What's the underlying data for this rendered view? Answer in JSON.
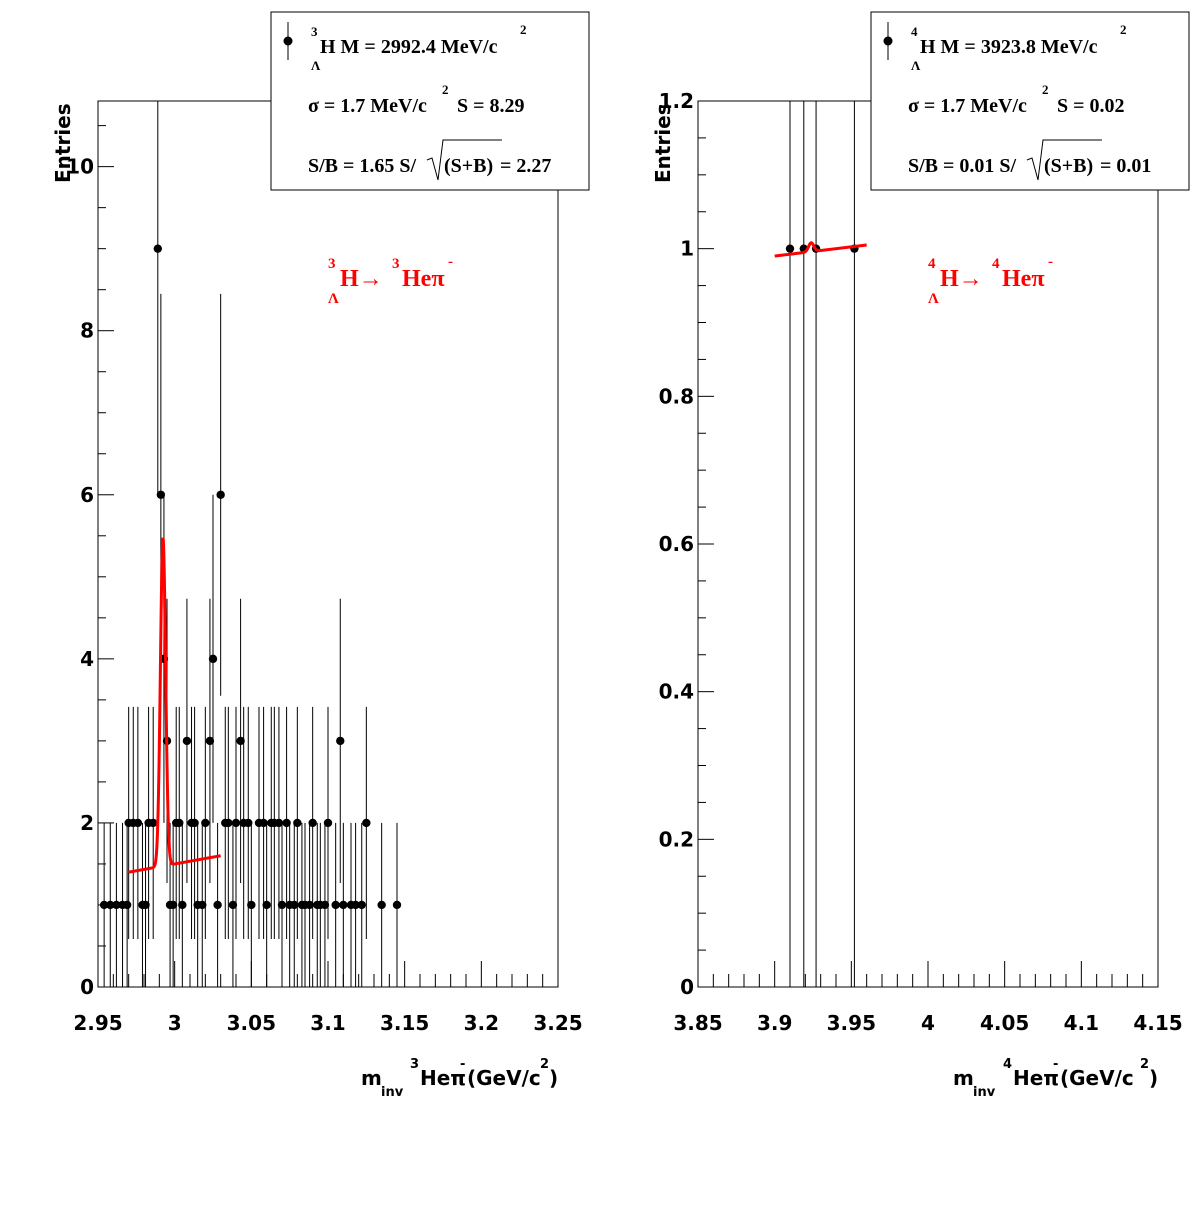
{
  "colors": {
    "data": "#000000",
    "fit": "#ff0000",
    "background": "#ffffff"
  },
  "chart_data": [
    {
      "type": "scatter",
      "ylabel": "Entries",
      "xlabel": {
        "prefix": "m",
        "sub": "inv",
        "nucleus_mass": "3",
        "particle": "Heπ",
        "charge": "-",
        "unit_open": "(GeV/c",
        "unit_exp": "2",
        "unit_close": ")"
      },
      "xlim": [
        2.95,
        3.25
      ],
      "ylim": [
        0,
        10.8
      ],
      "x_ticks": [
        "2.95",
        "3",
        "3.05",
        "3.1",
        "3.15",
        "3.2",
        "3.25"
      ],
      "x_tick_values": [
        2.95,
        3.0,
        3.05,
        3.1,
        3.15,
        3.2,
        3.25
      ],
      "y_ticks": [
        "0",
        "2",
        "4",
        "6",
        "8",
        "10"
      ],
      "y_tick_values": [
        0,
        2,
        4,
        6,
        8,
        10
      ],
      "points": [
        [
          2.954,
          1
        ],
        [
          2.958,
          1
        ],
        [
          2.962,
          1
        ],
        [
          2.966,
          1
        ],
        [
          2.969,
          1
        ],
        [
          2.97,
          2
        ],
        [
          2.973,
          2
        ],
        [
          2.976,
          2
        ],
        [
          2.979,
          1
        ],
        [
          2.981,
          1
        ],
        [
          2.983,
          2
        ],
        [
          2.986,
          2
        ],
        [
          2.989,
          9
        ],
        [
          2.991,
          6
        ],
        [
          2.993,
          4
        ],
        [
          2.995,
          3
        ],
        [
          2.997,
          1
        ],
        [
          2.999,
          1
        ],
        [
          3.001,
          2
        ],
        [
          3.003,
          2
        ],
        [
          3.005,
          1
        ],
        [
          3.008,
          3
        ],
        [
          3.011,
          2
        ],
        [
          3.013,
          2
        ],
        [
          3.015,
          1
        ],
        [
          3.018,
          1
        ],
        [
          3.02,
          2
        ],
        [
          3.023,
          3
        ],
        [
          3.025,
          4
        ],
        [
          3.028,
          1
        ],
        [
          3.03,
          6
        ],
        [
          3.033,
          2
        ],
        [
          3.035,
          2
        ],
        [
          3.038,
          1
        ],
        [
          3.04,
          2
        ],
        [
          3.043,
          3
        ],
        [
          3.045,
          2
        ],
        [
          3.048,
          2
        ],
        [
          3.05,
          1
        ],
        [
          3.055,
          2
        ],
        [
          3.058,
          2
        ],
        [
          3.06,
          1
        ],
        [
          3.063,
          2
        ],
        [
          3.065,
          2
        ],
        [
          3.068,
          2
        ],
        [
          3.07,
          1
        ],
        [
          3.073,
          2
        ],
        [
          3.075,
          1
        ],
        [
          3.078,
          1
        ],
        [
          3.08,
          2
        ],
        [
          3.083,
          1
        ],
        [
          3.085,
          1
        ],
        [
          3.088,
          1
        ],
        [
          3.09,
          2
        ],
        [
          3.093,
          1
        ],
        [
          3.095,
          1
        ],
        [
          3.098,
          1
        ],
        [
          3.1,
          2
        ],
        [
          3.105,
          1
        ],
        [
          3.108,
          3
        ],
        [
          3.11,
          1
        ],
        [
          3.115,
          1
        ],
        [
          3.118,
          1
        ],
        [
          3.122,
          1
        ],
        [
          3.125,
          2
        ],
        [
          3.135,
          1
        ],
        [
          3.145,
          1
        ]
      ],
      "fit": {
        "x_range": [
          2.97,
          3.03
        ],
        "background_line": [
          [
            2.97,
            1.4
          ],
          [
            3.03,
            1.6
          ]
        ],
        "peak_mean": 2.9924,
        "peak_sigma": 0.0017,
        "peak_height": 4.0
      },
      "legend": {
        "line1": {
          "nucleus_mass": "3",
          "hypernucleus_sub": "Λ",
          "text": "H M = 2992.4 MeV/c",
          "exp": "2"
        },
        "line2": {
          "text_a": "σ = 1.7 MeV/c",
          "exp": "2",
          "text_b": "S = 8.29"
        },
        "line3": {
          "text_a": "S/B = 1.65  S/",
          "sqrt_arg": "(S+B)",
          "text_b": " = 2.27"
        }
      },
      "annotation": {
        "parent_mass": "3",
        "parent_sub": "Λ",
        "parent": "H→",
        "daughter_mass": "3",
        "daughter": "Heπ",
        "charge": "-"
      }
    },
    {
      "type": "scatter",
      "ylabel": "Entries",
      "xlabel": {
        "prefix": "m",
        "sub": "inv",
        "nucleus_mass": "4",
        "particle": "Heπ",
        "charge": "-",
        "unit_open": " (GeV/c",
        "unit_exp": "2",
        "unit_close": ")"
      },
      "xlim": [
        3.85,
        4.15
      ],
      "ylim": [
        0,
        1.2
      ],
      "x_ticks": [
        "3.85",
        "3.9",
        "3.95",
        "4",
        "4.05",
        "4.1",
        "4.15"
      ],
      "x_tick_values": [
        3.85,
        3.9,
        3.95,
        4.0,
        4.05,
        4.1,
        4.15
      ],
      "y_ticks": [
        "0",
        "0.2",
        "0.4",
        "0.6",
        "0.8",
        "1",
        "1.2"
      ],
      "y_tick_values": [
        0,
        0.2,
        0.4,
        0.6,
        0.8,
        1.0,
        1.2
      ],
      "points": [
        [
          3.91,
          1
        ],
        [
          3.919,
          1
        ],
        [
          3.927,
          1
        ],
        [
          3.952,
          1
        ]
      ],
      "fit": {
        "x_range": [
          3.9,
          3.96
        ],
        "background_line": [
          [
            3.9,
            0.99
          ],
          [
            3.96,
            1.005
          ]
        ],
        "peak_mean": 3.9238,
        "peak_sigma": 0.0017,
        "peak_height": 0.012
      },
      "legend": {
        "line1": {
          "nucleus_mass": "4",
          "hypernucleus_sub": "Λ",
          "text": "H M = 3923.8 MeV/c",
          "exp": "2"
        },
        "line2": {
          "text_a": "σ = 1.7 MeV/c",
          "exp": "2",
          "text_b": "S = 0.02"
        },
        "line3": {
          "text_a": "S/B = 0.01  S/",
          "sqrt_arg": "(S+B)",
          "text_b": " = 0.01"
        }
      },
      "annotation": {
        "parent_mass": "4",
        "parent_sub": "Λ",
        "parent": "H→",
        "daughter_mass": "4",
        "daughter": "Heπ",
        "charge": "-"
      }
    }
  ]
}
